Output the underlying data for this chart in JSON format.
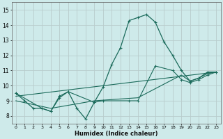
{
  "xlabel": "Humidex (Indice chaleur)",
  "bg_color": "#ceeaea",
  "grid_color": "#b8cccc",
  "line_color": "#1a6a5a",
  "xlim": [
    -0.5,
    23.5
  ],
  "ylim": [
    7.5,
    15.5
  ],
  "yticks": [
    8,
    9,
    10,
    11,
    12,
    13,
    14,
    15
  ],
  "xticks": [
    0,
    1,
    2,
    3,
    4,
    5,
    6,
    7,
    8,
    9,
    10,
    11,
    12,
    13,
    14,
    15,
    16,
    17,
    18,
    19,
    20,
    21,
    22,
    23
  ],
  "line1_x": [
    0,
    1,
    2,
    3,
    4,
    5,
    6,
    7,
    8,
    9,
    10,
    11,
    12,
    13,
    14,
    15,
    16,
    17,
    18,
    19,
    20,
    21,
    22,
    23
  ],
  "line1_y": [
    9.5,
    9.0,
    8.5,
    8.5,
    8.3,
    9.3,
    9.6,
    8.5,
    7.8,
    8.9,
    9.9,
    11.4,
    12.5,
    14.3,
    14.5,
    14.7,
    14.2,
    12.9,
    12.0,
    11.0,
    10.3,
    10.5,
    10.9,
    10.9
  ],
  "line2_x": [
    0,
    3,
    4,
    5,
    6,
    9,
    10,
    13,
    14,
    16,
    18,
    19,
    20,
    21,
    22,
    23
  ],
  "line2_y": [
    9.5,
    8.5,
    8.3,
    9.2,
    9.6,
    8.9,
    9.0,
    9.0,
    9.0,
    11.3,
    11.0,
    10.4,
    10.2,
    10.4,
    10.7,
    10.9
  ],
  "line3_x": [
    0,
    4,
    9,
    14,
    19,
    20,
    21,
    22,
    23
  ],
  "line3_y": [
    9.0,
    8.5,
    9.0,
    9.2,
    10.7,
    10.3,
    10.5,
    10.8,
    10.9
  ],
  "line4_x": [
    0,
    23
  ],
  "line4_y": [
    9.3,
    10.9
  ]
}
